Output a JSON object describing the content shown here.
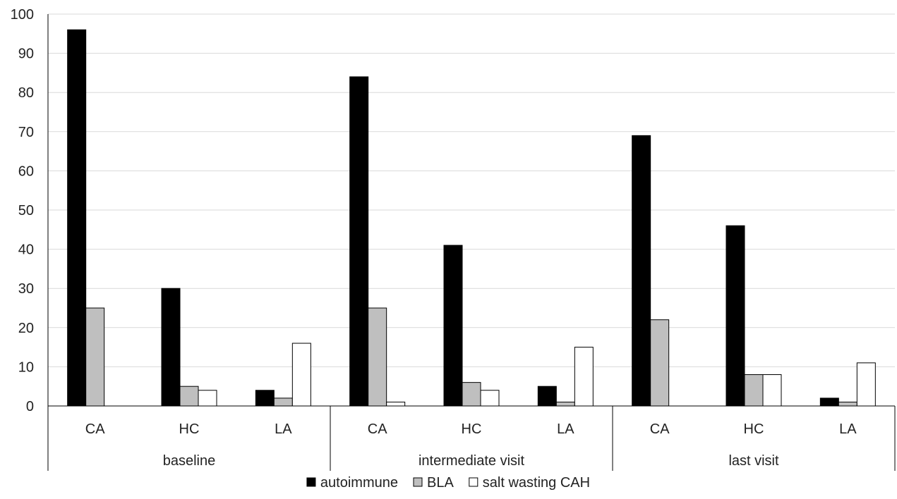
{
  "chart_data": {
    "type": "bar",
    "title": "",
    "xlabel": "",
    "ylabel": "",
    "ylim": [
      0,
      100
    ],
    "yticks": [
      0,
      10,
      20,
      30,
      40,
      50,
      60,
      70,
      80,
      90,
      100
    ],
    "grid": true,
    "legend_position": "bottom",
    "groups": [
      {
        "label": "baseline",
        "categories": [
          "CA",
          "HC",
          "LA"
        ]
      },
      {
        "label": "intermediate visit",
        "categories": [
          "CA",
          "HC",
          "LA"
        ]
      },
      {
        "label": "last visit",
        "categories": [
          "CA",
          "HC",
          "LA"
        ]
      }
    ],
    "series": [
      {
        "name": "autoimmune",
        "color": "#000000",
        "values": [
          96,
          30,
          4,
          84,
          41,
          5,
          69,
          46,
          2
        ]
      },
      {
        "name": "BLA",
        "color": "#bfbfbf",
        "values": [
          25,
          5,
          2,
          25,
          6,
          1,
          22,
          8,
          1
        ]
      },
      {
        "name": "salt wasting CAH",
        "color": "#ffffff",
        "values": [
          0,
          4,
          16,
          1,
          4,
          15,
          0,
          8,
          11
        ]
      }
    ]
  }
}
